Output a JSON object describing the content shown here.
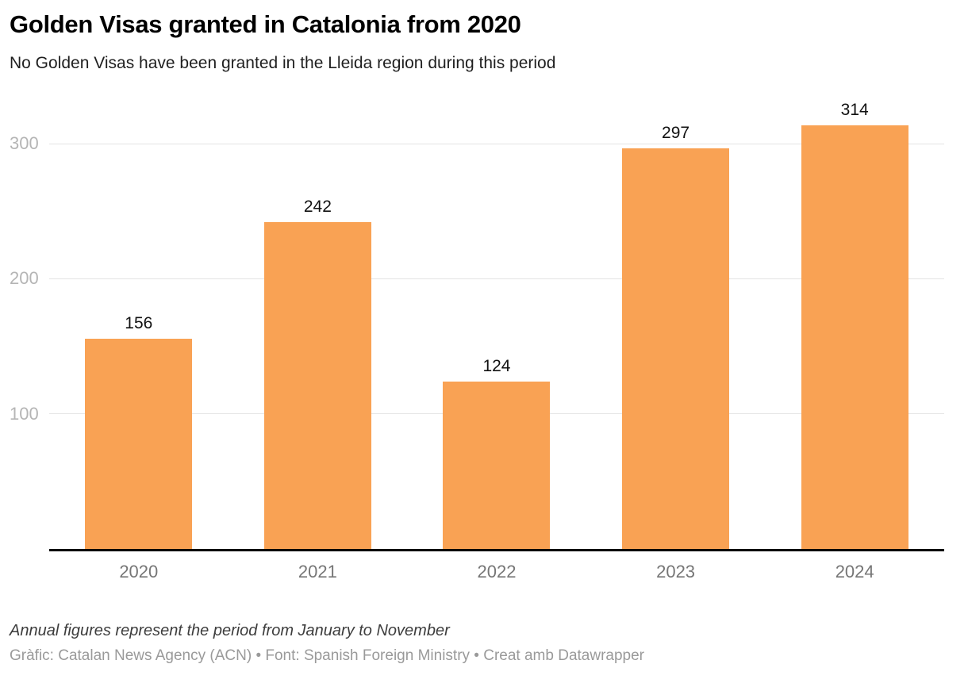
{
  "header": {
    "title": "Golden Visas granted in Catalonia from 2020",
    "subtitle": "No Golden Visas have been granted in the Lleida region during this period"
  },
  "chart_data": {
    "type": "bar",
    "title": "Golden Visas granted in Catalonia from 2020",
    "subtitle": "No Golden Visas have been granted in the Lleida region during this period",
    "categories": [
      "2020",
      "2021",
      "2022",
      "2023",
      "2024"
    ],
    "values": [
      156,
      242,
      124,
      297,
      314
    ],
    "xlabel": "",
    "ylabel": "",
    "ylim": [
      0,
      333
    ],
    "yticks": [
      100,
      200,
      300
    ],
    "grid": true,
    "legend": false,
    "value_labels": true,
    "bar_color": "#f9a254",
    "gridline_color": "#e4e4e4",
    "axis_line_color": "#000000"
  },
  "footer": {
    "note": "Annual figures represent the period from January to November",
    "attribution": "Gràfic: Catalan News Agency (ACN) • Font: Spanish Foreign Ministry • Creat amb Datawrapper"
  }
}
